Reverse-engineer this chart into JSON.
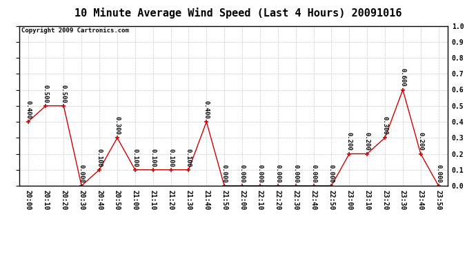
{
  "title": "10 Minute Average Wind Speed (Last 4 Hours) 20091016",
  "copyright": "Copyright 2009 Cartronics.com",
  "times": [
    "20:00",
    "20:10",
    "20:20",
    "20:30",
    "20:40",
    "20:50",
    "21:00",
    "21:10",
    "21:20",
    "21:30",
    "21:40",
    "21:50",
    "22:00",
    "22:10",
    "22:20",
    "22:30",
    "22:40",
    "22:50",
    "23:00",
    "23:10",
    "23:20",
    "23:30",
    "23:40",
    "23:50"
  ],
  "values": [
    0.4,
    0.5,
    0.5,
    0.0,
    0.1,
    0.3,
    0.1,
    0.1,
    0.1,
    0.1,
    0.4,
    0.0,
    0.0,
    0.0,
    0.0,
    0.0,
    0.0,
    0.0,
    0.2,
    0.2,
    0.3,
    0.6,
    0.2,
    0.0
  ],
  "line_color": "#cc0000",
  "marker_color": "#cc0000",
  "bg_color": "#ffffff",
  "grid_color": "#bbbbbb",
  "ylim": [
    0.0,
    1.0
  ],
  "yticks": [
    0.0,
    0.1,
    0.2,
    0.3,
    0.4,
    0.5,
    0.6,
    0.7,
    0.8,
    0.9,
    1.0
  ],
  "title_fontsize": 11,
  "label_fontsize": 7,
  "annot_fontsize": 6.5,
  "copyright_fontsize": 6.5
}
